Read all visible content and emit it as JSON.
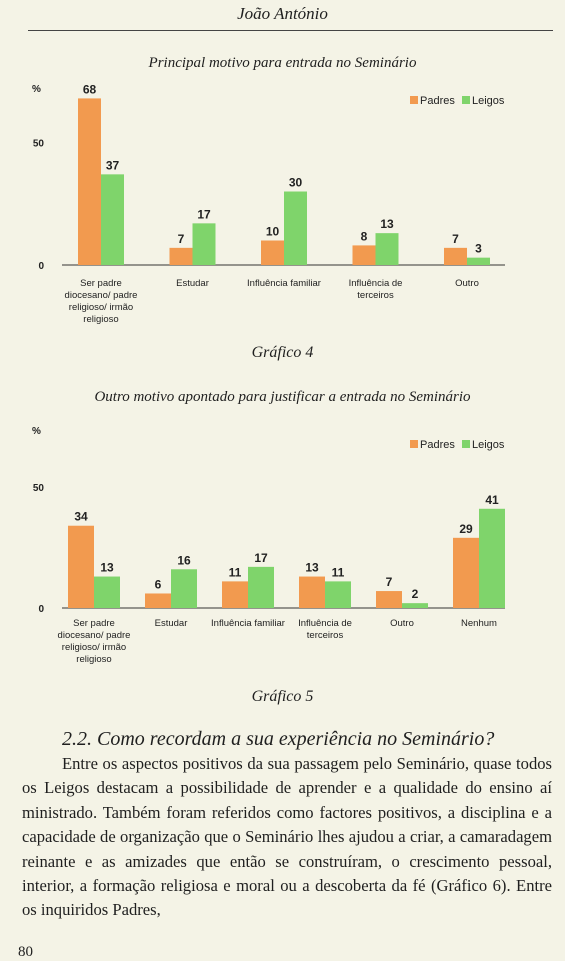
{
  "header": {
    "running_title": "João António"
  },
  "colors": {
    "padres": "#f29a4f",
    "leigos": "#7fd46b",
    "background": "#f4f3e6"
  },
  "chart_data": [
    {
      "type": "bar",
      "title": "Principal motivo para entrada no Seminário",
      "ylabel": "%",
      "ylim": [
        0,
        70
      ],
      "yticks": [
        0,
        50
      ],
      "legend_position": "top-right",
      "categories": [
        "Ser padre diocesano/ padre religioso/ irmão religioso",
        "Estudar",
        "Influência familiar",
        "Influência de terceiros",
        "Outro"
      ],
      "category_lines": [
        [
          "Ser padre",
          "diocesano/ padre",
          "religioso/ irmão",
          "religioso"
        ],
        [
          "Estudar"
        ],
        [
          "Influência familiar"
        ],
        [
          "Influência de",
          "terceiros"
        ],
        [
          "Outro"
        ]
      ],
      "series": [
        {
          "name": "Padres",
          "values": [
            68,
            7,
            10,
            8,
            7
          ]
        },
        {
          "name": "Leigos",
          "values": [
            37,
            17,
            30,
            13,
            3
          ]
        }
      ],
      "caption": "Gráfico 4"
    },
    {
      "type": "bar",
      "title": "Outro motivo apontado para justificar a entrada no Seminário",
      "ylabel": "%",
      "ylim": [
        0,
        70
      ],
      "yticks": [
        0,
        50
      ],
      "legend_position": "top-right",
      "categories": [
        "Ser padre diocesano/ padre religioso/ irmão religioso",
        "Estudar",
        "Influência familiar",
        "Influência de terceiros",
        "Outro",
        "Nenhum"
      ],
      "category_lines": [
        [
          "Ser padre",
          "diocesano/ padre",
          "religioso/ irmão",
          "religioso"
        ],
        [
          "Estudar"
        ],
        [
          "Influência familiar"
        ],
        [
          "Influência de",
          "terceiros"
        ],
        [
          "Outro"
        ],
        [
          "Nenhum"
        ]
      ],
      "series": [
        {
          "name": "Padres",
          "values": [
            34,
            6,
            11,
            13,
            7,
            29
          ]
        },
        {
          "name": "Leigos",
          "values": [
            13,
            16,
            17,
            11,
            2,
            41
          ]
        }
      ],
      "caption": "Gráfico 5"
    }
  ],
  "section": {
    "heading": "2.2. Como recordam a sua experiência no Seminário?",
    "paragraph": "Entre os aspectos positivos da sua passagem pelo Seminário, quase todos os Leigos destacam a possibilidade de aprender e a qualidade do ensino aí ministrado. Também foram referidos como factores positivos, a disciplina e a capacidade de organização que o Seminário lhes ajudou a criar, a camaradagem reinante e as amizades que então se construíram, o crescimento pessoal, interior, a formação religiosa e moral ou a descoberta da fé (Gráfico 6). Entre os inquiridos Padres,"
  },
  "page_number": "80"
}
